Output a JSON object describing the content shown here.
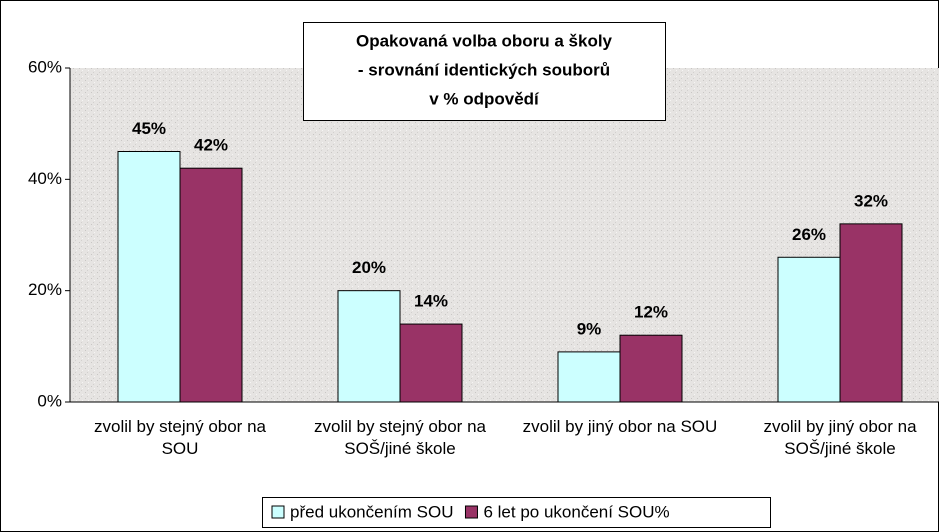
{
  "chart_data": {
    "type": "bar",
    "title": [
      "Opakovaná volba oboru a školy",
      "- srovnání identických souborů",
      "v % odpovědí"
    ],
    "categories": [
      "zvolil by stejný obor na SOU",
      "zvolil by stejný obor na SOŠ/jiné škole",
      "zvolil by jiný obor na SOU",
      "zvolil by jiný obor na SOŠ/jiné škole"
    ],
    "series": [
      {
        "name": "před ukončením SOU",
        "color": "#ccffff",
        "values": [
          45,
          20,
          9,
          26
        ],
        "value_labels": [
          "45%",
          "20%",
          "9%",
          "26%"
        ]
      },
      {
        "name": "6 let po ukončení SOU%",
        "color": "#993366",
        "values": [
          42,
          14,
          12,
          32
        ],
        "value_labels": [
          "42%",
          "14%",
          "12%",
          "32%"
        ]
      }
    ],
    "ylim": [
      0,
      60
    ],
    "yticks": [
      {
        "value": 0,
        "label": "0%"
      },
      {
        "value": 20,
        "label": "20%"
      },
      {
        "value": 40,
        "label": "40%"
      },
      {
        "value": 60,
        "label": "60%"
      }
    ],
    "legend": "bottom"
  }
}
